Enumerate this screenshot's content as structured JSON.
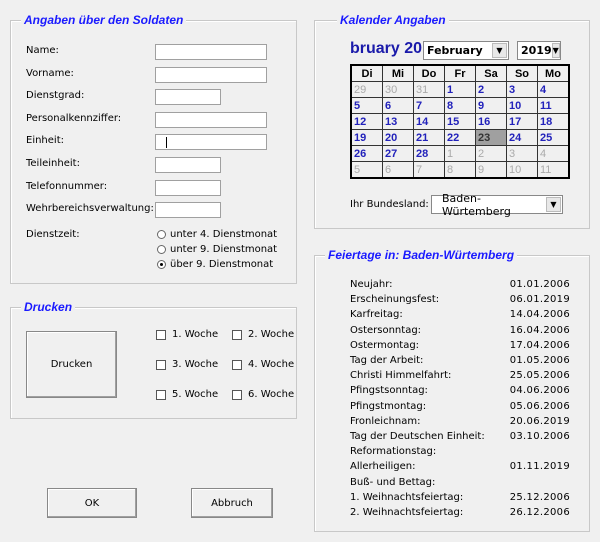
{
  "soldaten": {
    "title": "Angaben über den Soldaten",
    "fields": [
      {
        "label": "Name:",
        "value": ""
      },
      {
        "label": "Vorname:",
        "value": ""
      },
      {
        "label": "Dienstgrad:",
        "value": ""
      },
      {
        "label": "Personalkennziffer:",
        "value": ""
      },
      {
        "label": "Einheit:",
        "value": ""
      },
      {
        "label": "Teileinheit:",
        "value": ""
      },
      {
        "label": "Telefonnummer:",
        "value": ""
      },
      {
        "label": "Wehrbereichsverwaltung:",
        "value": ""
      }
    ],
    "dienstzeit_label": "Dienstzeit:",
    "dienstzeit_options": [
      "unter 4. Dienstmonat",
      "unter 9. Dienstmonat",
      "über 9. Dienstmonat"
    ],
    "dienstzeit_selected": 2
  },
  "drucken": {
    "title": "Drucken",
    "button": "Drucken",
    "weeks": [
      "1. Woche",
      "2. Woche",
      "3. Woche",
      "4. Woche",
      "5. Woche",
      "6. Woche"
    ]
  },
  "buttons": {
    "ok": "OK",
    "abbruch": "Abbruch"
  },
  "kalender": {
    "title": "Kalender Angaben",
    "header": "bruary 20",
    "month": "February",
    "year": "2019",
    "weekdays": [
      "Di",
      "Mi",
      "Do",
      "Fr",
      "Sa",
      "So",
      "Mo"
    ],
    "weeks": [
      [
        "29",
        "30",
        "31",
        "1",
        "2",
        "3",
        "4"
      ],
      [
        "5",
        "6",
        "7",
        "8",
        "9",
        "10",
        "11"
      ],
      [
        "12",
        "13",
        "14",
        "15",
        "16",
        "17",
        "18"
      ],
      [
        "19",
        "20",
        "21",
        "22",
        "23",
        "24",
        "25"
      ],
      [
        "26",
        "27",
        "28",
        "1",
        "2",
        "3",
        "4"
      ],
      [
        "5",
        "6",
        "7",
        "8",
        "9",
        "10",
        "11"
      ]
    ],
    "selected_day": "23",
    "bundesland_label": "Ihr Bundesland:",
    "bundesland": "Baden-Würtemberg"
  },
  "feiertage": {
    "title": "Feiertage in: Baden-Würtemberg",
    "items": [
      {
        "name": "Neujahr:",
        "date": "01.01.2006"
      },
      {
        "name": "Erscheinungsfest:",
        "date": "06.01.2019"
      },
      {
        "name": "Karfreitag:",
        "date": "14.04.2006"
      },
      {
        "name": "Ostersonntag:",
        "date": "16.04.2006"
      },
      {
        "name": "Ostermontag:",
        "date": "17.04.2006"
      },
      {
        "name": "Tag der Arbeit:",
        "date": "01.05.2006"
      },
      {
        "name": "Christi Himmelfahrt:",
        "date": "25.05.2006"
      },
      {
        "name": "Pfingstsonntag:",
        "date": "04.06.2006"
      },
      {
        "name": "Pfingstmontag:",
        "date": "05.06.2006"
      },
      {
        "name": "Fronleichnam:",
        "date": "20.06.2019"
      },
      {
        "name": "Tag der Deutschen Einheit:",
        "date": "03.10.2006"
      },
      {
        "name": "Reformationstag:",
        "date": ""
      },
      {
        "name": "Allerheiligen:",
        "date": "01.11.2019"
      },
      {
        "name": "Buß- und Bettag:",
        "date": ""
      },
      {
        "name": "1. Weihnachtsfeiertag:",
        "date": "25.12.2006"
      },
      {
        "name": "2. Weihnachtsfeiertag:",
        "date": "26.12.2006"
      }
    ]
  }
}
